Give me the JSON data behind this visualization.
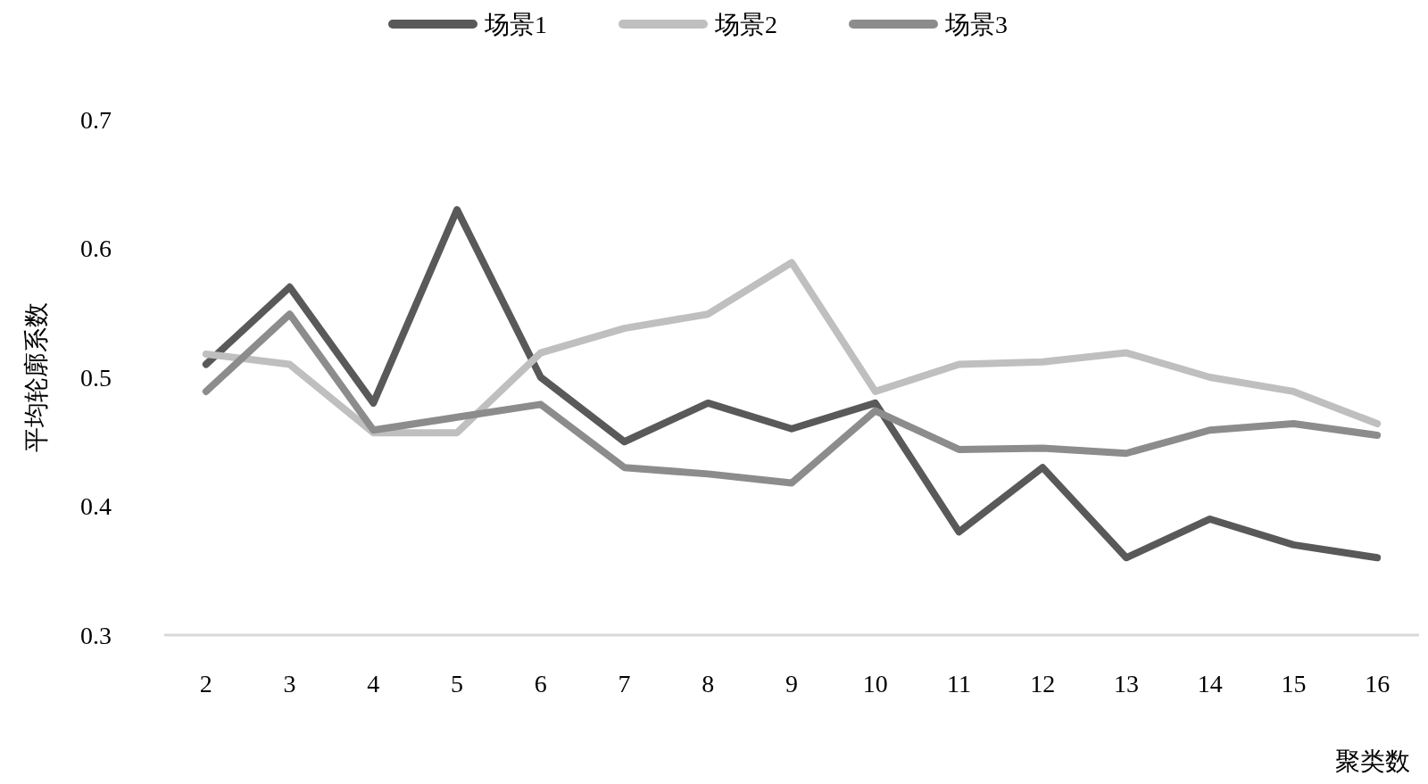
{
  "chart_data": {
    "type": "line",
    "xlabel": "聚类数",
    "ylabel": "平均轮廓系数",
    "categories": [
      "2",
      "3",
      "4",
      "5",
      "6",
      "7",
      "8",
      "9",
      "10",
      "11",
      "12",
      "13",
      "14",
      "15",
      "16"
    ],
    "ylim": [
      0.3,
      0.7
    ],
    "yticks": [
      0.3,
      0.4,
      0.5,
      0.6,
      0.7
    ],
    "grid": false,
    "legend": "top",
    "marker": "none",
    "line_style": "solid",
    "series": [
      {
        "name": "场景1",
        "color": "#595959",
        "values": [
          0.51,
          0.57,
          0.48,
          0.63,
          0.5,
          0.45,
          0.48,
          0.46,
          0.48,
          0.38,
          0.43,
          0.36,
          0.39,
          0.37,
          0.36
        ]
      },
      {
        "name": "场景2",
        "color": "#bfbfbf",
        "values": [
          0.518,
          0.51,
          0.457,
          0.457,
          0.519,
          0.538,
          0.549,
          0.589,
          0.489,
          0.51,
          0.512,
          0.519,
          0.5,
          0.489,
          0.464
        ]
      },
      {
        "name": "场景3",
        "color": "#8c8c8c",
        "values": [
          0.489,
          0.549,
          0.459,
          0.469,
          0.479,
          0.43,
          0.425,
          0.418,
          0.474,
          0.444,
          0.445,
          0.441,
          0.459,
          0.464,
          0.455
        ]
      }
    ]
  }
}
